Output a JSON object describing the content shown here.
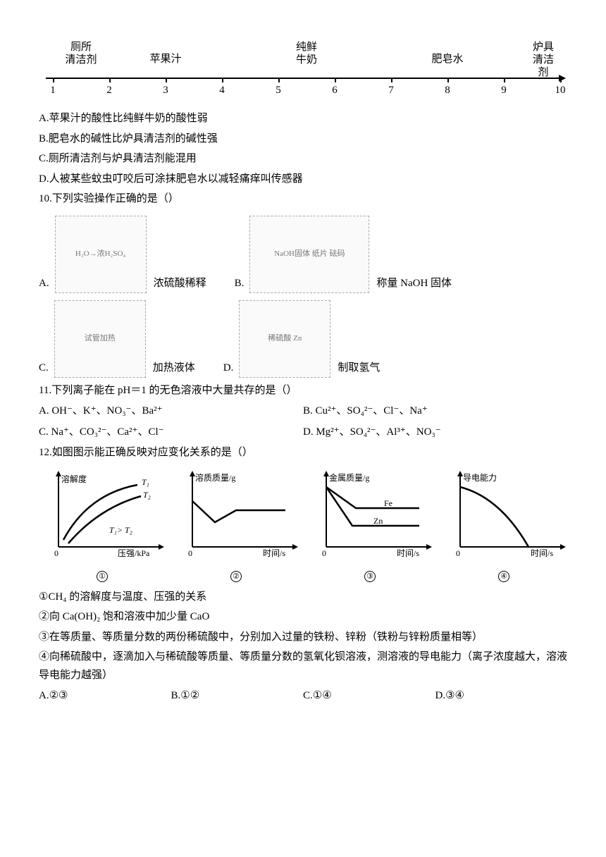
{
  "phScale": {
    "axisY": 70,
    "start": 1,
    "end": 10,
    "ticks": [
      1,
      2,
      3,
      4,
      5,
      6,
      7,
      8,
      9,
      10
    ],
    "labels": [
      {
        "pos": 1.5,
        "text": "厕所\n清洁剂"
      },
      {
        "pos": 3,
        "text": "苹果汁"
      },
      {
        "pos": 5.5,
        "text": "纯鲜\n牛奶"
      },
      {
        "pos": 8,
        "text": "肥皂水"
      },
      {
        "pos": 9.7,
        "text": "炉具\n清洁剂"
      }
    ]
  },
  "options9": {
    "A": "A.苹果汁的酸性比纯鲜牛奶的酸性弱",
    "B": "B.肥皂水的碱性比炉具清洁剂的碱性强",
    "C": "C.厕所清洁剂与炉具清洁剂能混用",
    "D": "D.人被某些蚊虫叮咬后可涂抹肥皂水以减轻痛痒叫传感器"
  },
  "q10": "10.下列实验操作正确的是（）",
  "q10opts": [
    {
      "let": "A.",
      "ph": "H₂O→浓H₂SO₄",
      "cap": "浓硫酸稀释"
    },
    {
      "let": "B.",
      "ph": "NaOH固体 纸片 砝码",
      "cap": "称量 NaOH 固体"
    },
    {
      "let": "C.",
      "ph": "试管加热",
      "cap": "加热液体"
    },
    {
      "let": "D.",
      "ph": "稀硫酸 Zn",
      "cap": "制取氢气"
    }
  ],
  "q11": "11.下列离子能在 pH＝1 的无色溶液中大量共存的是（）",
  "q11o": {
    "A": "A. OH⁻、K⁺、NO₃⁻、Ba²⁺",
    "B": "B. Cu²⁺、SO₄²⁻、Cl⁻、Na⁺",
    "C": "C. Na⁺、CO₃²⁻、Ca²⁺、Cl⁻",
    "D": "D. Mg²⁺、SO₄²⁻、Al³⁺、NO₃⁻"
  },
  "q12": "12.如图图示能正确反映对应变化关系的是（）",
  "charts": {
    "c1": {
      "ylabel": "溶解度",
      "xlabel": "压强/kPa",
      "num": "①",
      "T1": "T₁",
      "T2": "T₂",
      "note": "T₁> T₂"
    },
    "c2": {
      "ylabel": "溶质质量/g",
      "xlabel": "时间/s",
      "num": "②"
    },
    "c3": {
      "ylabel": "金属质量/g",
      "xlabel": "时间/s",
      "num": "③",
      "s1": "Fe",
      "s2": "Zn"
    },
    "c4": {
      "ylabel": "导电能力",
      "xlabel": "时间/s",
      "num": "④"
    }
  },
  "q12desc": {
    "d1": "①CH₄ 的溶解度与温度、压强的关系",
    "d2": "②向 Ca(OH)₂ 饱和溶液中加少量 CaO",
    "d3": "③在等质量、等质量分数的两份稀硫酸中，分别加入过量的铁粉、锌粉（铁粉与锌粉质量相等）",
    "d4": "④向稀硫酸中，逐滴加入与稀硫酸等质量、等质量分数的氢氧化钡溶液，测溶液的导电能力（离子浓度越大，溶液导电能力越强）"
  },
  "q12o": {
    "A": "A.②③",
    "B": "B.①②",
    "C": "C.①④",
    "D": "D.③④"
  }
}
